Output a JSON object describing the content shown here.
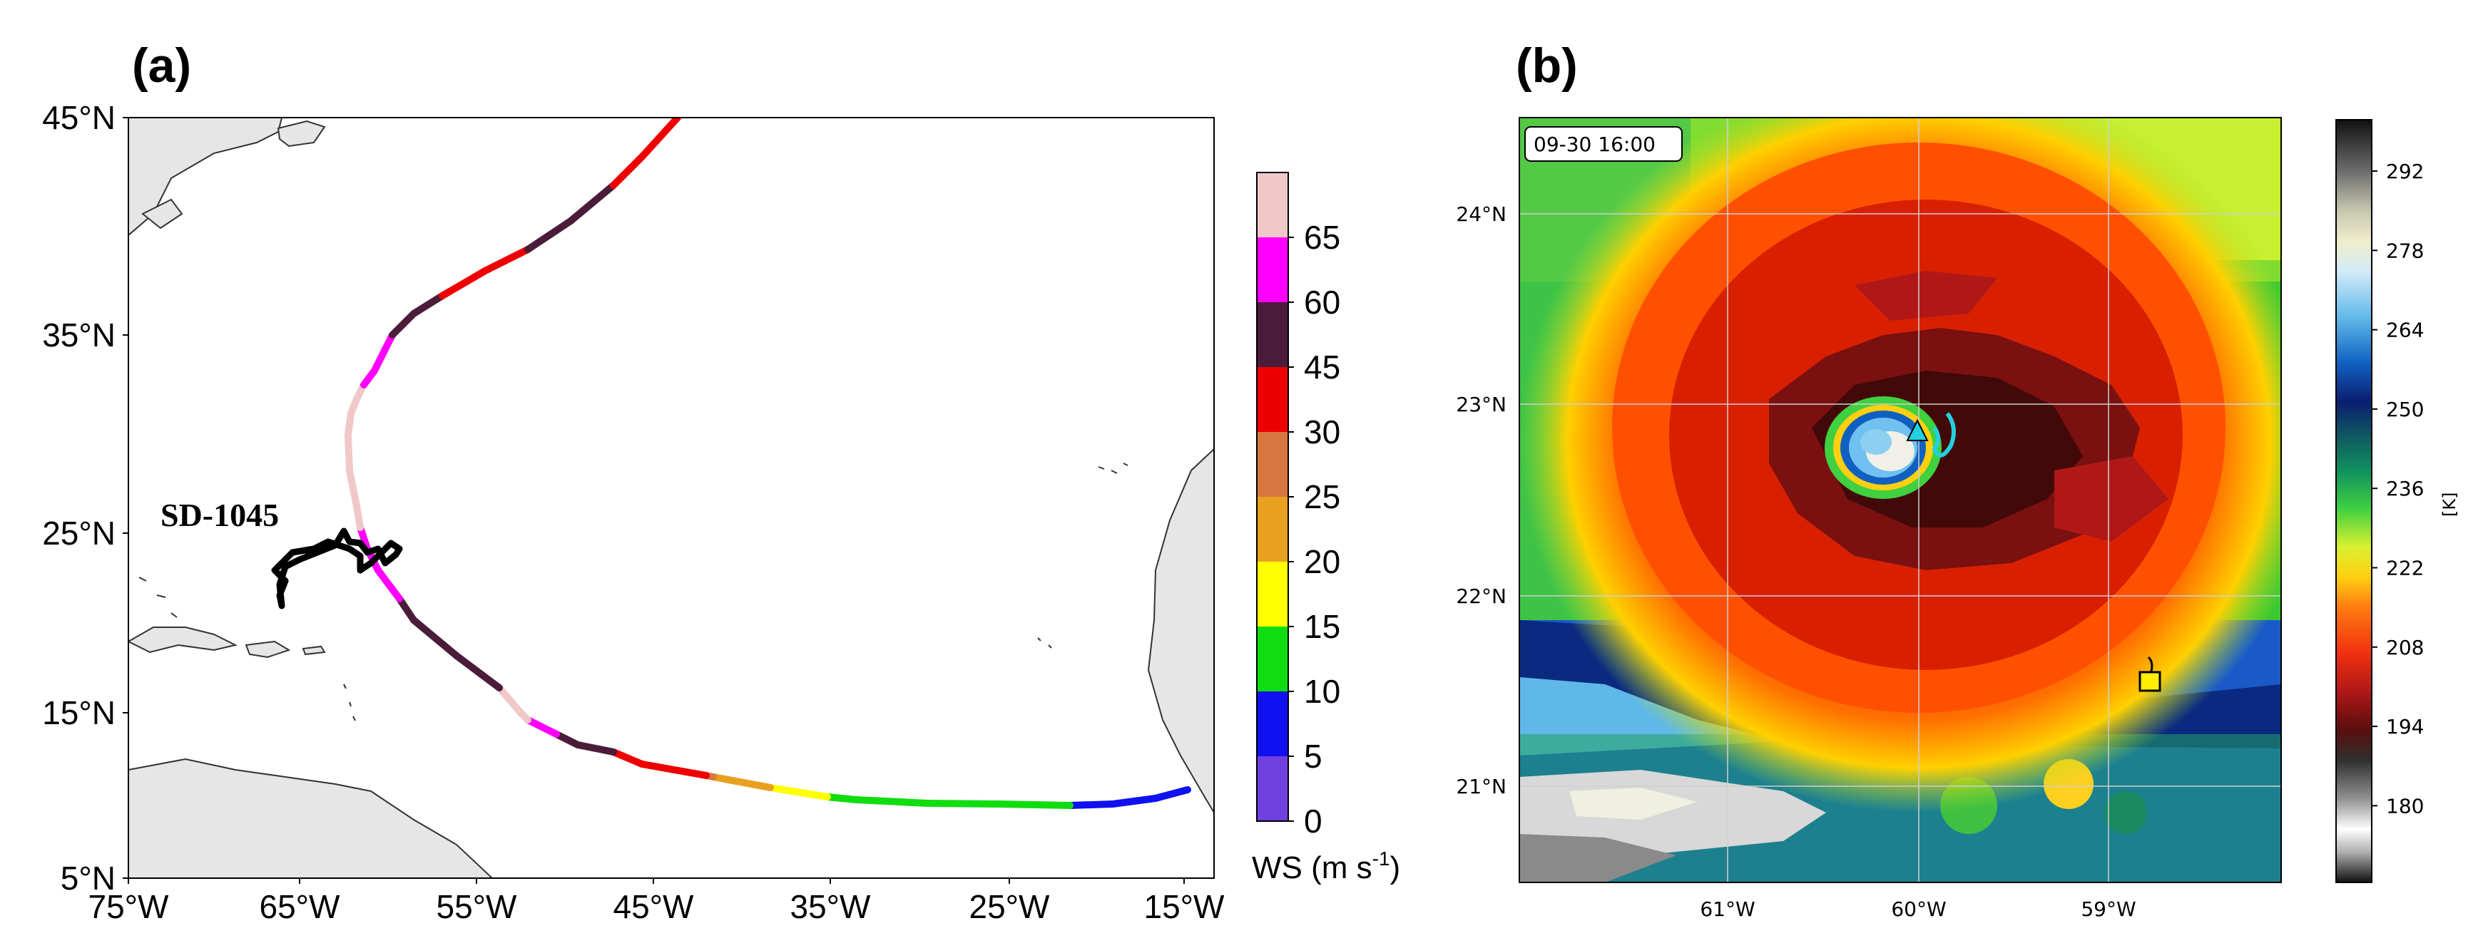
{
  "panel_a": {
    "label": "(a)",
    "track_label": "SD-1045",
    "lat_ticks": [
      "45°N",
      "35°N",
      "25°N",
      "15°N",
      "5°N"
    ],
    "lon_ticks": [
      "75°W",
      "65°W",
      "55°W",
      "45°W",
      "35°W",
      "25°W",
      "15°W"
    ],
    "colorbar": {
      "title": "WS (m s",
      "title_sup": "-1",
      "title_end": ")",
      "ticks": [
        "0",
        "5",
        "10",
        "15",
        "20",
        "25",
        "30",
        "45",
        "60",
        "65"
      ],
      "colors": [
        "#7040e0",
        "#1010f0",
        "#10dd10",
        "#ffff00",
        "#e8a020",
        "#d87840",
        "#ee0000",
        "#4a1c3a",
        "#ff00ff",
        "#f0c8c8"
      ]
    },
    "colors": {
      "land": "#e6e6e6",
      "coast": "#333333",
      "saildrone_track": "#000000"
    }
  },
  "panel_b": {
    "label": "(b)",
    "timestamp": "09-30 16:00",
    "lat_ticks": [
      "24°N",
      "23°N",
      "22°N",
      "21°N"
    ],
    "lon_ticks": [
      "61°W",
      "60°W",
      "59°W"
    ],
    "colorbar": {
      "unit": "[K]",
      "ticks": [
        "292",
        "278",
        "264",
        "250",
        "236",
        "222",
        "208",
        "194",
        "180"
      ]
    },
    "markers": {
      "cyan_triangle": "#22d0e0",
      "yellow_square": "#ffee00"
    }
  }
}
